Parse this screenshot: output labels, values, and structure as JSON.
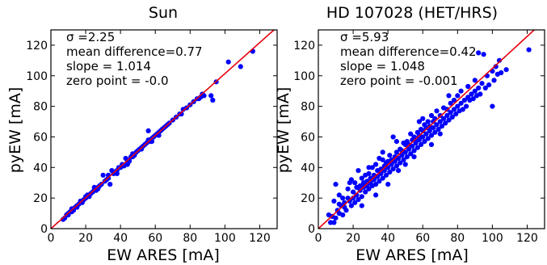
{
  "chart_data": [
    {
      "type": "scatter",
      "title": "Sun",
      "xlabel": "EW ARES [mA]",
      "ylabel": "pyEW [mA]",
      "xlim": [
        0,
        130
      ],
      "ylim": [
        0,
        130
      ],
      "xticks": [
        0,
        20,
        40,
        60,
        80,
        100,
        120
      ],
      "yticks": [
        0,
        20,
        40,
        60,
        80,
        100,
        120
      ],
      "annotations": [
        "σ =2.25",
        "mean difference=0.77",
        "slope = 1.014",
        "zero point = -0.0"
      ],
      "line": {
        "slope": 1.014,
        "intercept": 0.0,
        "color": "#e8000b"
      },
      "point_color": "#0000ff",
      "points": [
        [
          7,
          6
        ],
        [
          8,
          7
        ],
        [
          9,
          9
        ],
        [
          10,
          10
        ],
        [
          11,
          11
        ],
        [
          12,
          11
        ],
        [
          12,
          13
        ],
        [
          13,
          12
        ],
        [
          14,
          14
        ],
        [
          15,
          15
        ],
        [
          16,
          16
        ],
        [
          17,
          18
        ],
        [
          18,
          17
        ],
        [
          19,
          19
        ],
        [
          20,
          21
        ],
        [
          21,
          22
        ],
        [
          22,
          21
        ],
        [
          23,
          23
        ],
        [
          24,
          24
        ],
        [
          25,
          26
        ],
        [
          26,
          25
        ],
        [
          27,
          27
        ],
        [
          28,
          28
        ],
        [
          29,
          29
        ],
        [
          30,
          35
        ],
        [
          31,
          31
        ],
        [
          32,
          32
        ],
        [
          33,
          33
        ],
        [
          34,
          29
        ],
        [
          35,
          38
        ],
        [
          36,
          36
        ],
        [
          37,
          37
        ],
        [
          38,
          38
        ],
        [
          39,
          40
        ],
        [
          40,
          40
        ],
        [
          41,
          42
        ],
        [
          42,
          41
        ],
        [
          43,
          46
        ],
        [
          44,
          44
        ],
        [
          45,
          45
        ],
        [
          46,
          47
        ],
        [
          47,
          47
        ],
        [
          48,
          48
        ],
        [
          49,
          50
        ],
        [
          50,
          51
        ],
        [
          51,
          52
        ],
        [
          52,
          52
        ],
        [
          53,
          54
        ],
        [
          54,
          55
        ],
        [
          55,
          56
        ],
        [
          56,
          58
        ],
        [
          57,
          57
        ],
        [
          58,
          59
        ],
        [
          59,
          60
        ],
        [
          60,
          61
        ],
        [
          61,
          62
        ],
        [
          62,
          63
        ],
        [
          63,
          64
        ],
        [
          64,
          65
        ],
        [
          56,
          64
        ],
        [
          65,
          66
        ],
        [
          66,
          67
        ],
        [
          67,
          68
        ],
        [
          68,
          69
        ],
        [
          70,
          71
        ],
        [
          72,
          73
        ],
        [
          74,
          75
        ],
        [
          75,
          75
        ],
        [
          76,
          78
        ],
        [
          78,
          79
        ],
        [
          80,
          81
        ],
        [
          82,
          83
        ],
        [
          84,
          85
        ],
        [
          85,
          85
        ],
        [
          86,
          86
        ],
        [
          87,
          88
        ],
        [
          88,
          87
        ],
        [
          92,
          87
        ],
        [
          93,
          84
        ],
        [
          95,
          96
        ],
        [
          102,
          109
        ],
        [
          109,
          106
        ],
        [
          116,
          116
        ],
        [
          44,
          42
        ],
        [
          47,
          49
        ],
        [
          33,
          35
        ],
        [
          27,
          26
        ],
        [
          15,
          14
        ],
        [
          10,
          9
        ],
        [
          20,
          20
        ],
        [
          25,
          27
        ],
        [
          38,
          36
        ],
        [
          52,
          53
        ],
        [
          58,
          57
        ],
        [
          62,
          61
        ],
        [
          45,
          44
        ]
      ]
    },
    {
      "type": "scatter",
      "title": "HD 107028 (HET/HRS)",
      "xlabel": "EW ARES [mA]",
      "ylabel": "pyEW [mA]",
      "xlim": [
        0,
        130
      ],
      "ylim": [
        0,
        130
      ],
      "xticks": [
        0,
        20,
        40,
        60,
        80,
        100,
        120
      ],
      "yticks": [
        0,
        20,
        40,
        60,
        80,
        100,
        120
      ],
      "annotations": [
        "σ =5.93",
        "mean difference=0.42",
        "slope = 1.048",
        "zero point = -0.001"
      ],
      "line": {
        "slope": 1.048,
        "intercept": -0.001,
        "color": "#e8000b"
      },
      "point_color": "#0000ff",
      "points": [
        [
          6,
          9
        ],
        [
          7,
          4
        ],
        [
          8,
          8
        ],
        [
          9,
          18
        ],
        [
          10,
          7
        ],
        [
          10,
          29
        ],
        [
          11,
          12
        ],
        [
          12,
          10
        ],
        [
          12,
          16
        ],
        [
          13,
          15
        ],
        [
          14,
          9
        ],
        [
          14,
          20
        ],
        [
          15,
          14
        ],
        [
          15,
          17
        ],
        [
          16,
          12
        ],
        [
          17,
          20
        ],
        [
          17,
          26
        ],
        [
          18,
          18
        ],
        [
          19,
          15
        ],
        [
          19,
          32
        ],
        [
          20,
          20
        ],
        [
          20,
          24
        ],
        [
          21,
          17
        ],
        [
          21,
          30
        ],
        [
          22,
          22
        ],
        [
          22,
          27
        ],
        [
          23,
          19
        ],
        [
          23,
          38
        ],
        [
          24,
          25
        ],
        [
          24,
          28
        ],
        [
          25,
          21
        ],
        [
          25,
          33
        ],
        [
          26,
          27
        ],
        [
          26,
          30
        ],
        [
          27,
          24
        ],
        [
          27,
          35
        ],
        [
          28,
          28
        ],
        [
          28,
          31
        ],
        [
          29,
          26
        ],
        [
          29,
          36
        ],
        [
          30,
          30
        ],
        [
          30,
          33
        ],
        [
          31,
          28
        ],
        [
          31,
          40
        ],
        [
          32,
          32
        ],
        [
          32,
          35
        ],
        [
          33,
          29
        ],
        [
          33,
          42
        ],
        [
          34,
          34
        ],
        [
          34,
          38
        ],
        [
          35,
          31
        ],
        [
          35,
          46
        ],
        [
          36,
          36
        ],
        [
          36,
          39
        ],
        [
          37,
          33
        ],
        [
          37,
          45
        ],
        [
          38,
          38
        ],
        [
          38,
          41
        ],
        [
          39,
          35
        ],
        [
          39,
          43
        ],
        [
          40,
          40
        ],
        [
          40,
          44
        ],
        [
          41,
          37
        ],
        [
          41,
          48
        ],
        [
          42,
          42
        ],
        [
          42,
          45
        ],
        [
          43,
          39
        ],
        [
          43,
          60
        ],
        [
          44,
          44
        ],
        [
          44,
          47
        ],
        [
          45,
          41
        ],
        [
          45,
          50
        ],
        [
          46,
          46
        ],
        [
          46,
          38
        ],
        [
          47,
          43
        ],
        [
          47,
          52
        ],
        [
          48,
          48
        ],
        [
          48,
          51
        ],
        [
          49,
          45
        ],
        [
          49,
          56
        ],
        [
          50,
          50
        ],
        [
          50,
          55
        ],
        [
          51,
          47
        ],
        [
          51,
          57
        ],
        [
          52,
          52
        ],
        [
          52,
          55
        ],
        [
          53,
          49
        ],
        [
          53,
          62
        ],
        [
          54,
          54
        ],
        [
          54,
          58
        ],
        [
          55,
          51
        ],
        [
          55,
          60
        ],
        [
          56,
          56
        ],
        [
          56,
          59
        ],
        [
          57,
          53
        ],
        [
          57,
          63
        ],
        [
          58,
          58
        ],
        [
          58,
          61
        ],
        [
          59,
          55
        ],
        [
          59,
          65
        ],
        [
          60,
          60
        ],
        [
          60,
          64
        ],
        [
          61,
          57
        ],
        [
          61,
          68
        ],
        [
          62,
          62
        ],
        [
          62,
          66
        ],
        [
          63,
          59
        ],
        [
          63,
          70
        ],
        [
          64,
          64
        ],
        [
          64,
          67
        ],
        [
          65,
          61
        ],
        [
          65,
          74
        ],
        [
          66,
          66
        ],
        [
          66,
          70
        ],
        [
          67,
          63
        ],
        [
          67,
          72
        ],
        [
          68,
          68
        ],
        [
          68,
          77
        ],
        [
          69,
          65
        ],
        [
          70,
          70
        ],
        [
          70,
          74
        ],
        [
          71,
          67
        ],
        [
          72,
          72
        ],
        [
          72,
          79
        ],
        [
          73,
          69
        ],
        [
          74,
          74
        ],
        [
          74,
          78
        ],
        [
          75,
          71
        ],
        [
          76,
          76
        ],
        [
          76,
          82
        ],
        [
          77,
          73
        ],
        [
          78,
          78
        ],
        [
          78,
          84
        ],
        [
          79,
          75
        ],
        [
          80,
          80
        ],
        [
          80,
          87
        ],
        [
          81,
          77
        ],
        [
          82,
          82
        ],
        [
          82,
          90
        ],
        [
          83,
          78
        ],
        [
          84,
          84
        ],
        [
          85,
          80
        ],
        [
          86,
          86
        ],
        [
          86,
          93
        ],
        [
          87,
          84
        ],
        [
          88,
          88
        ],
        [
          89,
          85
        ],
        [
          90,
          90
        ],
        [
          90,
          97
        ],
        [
          91,
          87
        ],
        [
          92,
          92
        ],
        [
          92,
          115
        ],
        [
          93,
          88
        ],
        [
          94,
          95
        ],
        [
          95,
          114
        ],
        [
          96,
          92
        ],
        [
          97,
          100
        ],
        [
          98,
          94
        ],
        [
          100,
          103
        ],
        [
          100,
          80
        ],
        [
          101,
          97
        ],
        [
          102,
          106
        ],
        [
          103,
          101
        ],
        [
          104,
          110
        ],
        [
          105,
          102
        ],
        [
          108,
          104
        ],
        [
          121,
          117
        ],
        [
          37,
          50
        ],
        [
          40,
          29
        ],
        [
          29,
          40
        ],
        [
          45,
          57
        ],
        [
          58,
          70
        ],
        [
          50,
          42
        ],
        [
          65,
          55
        ],
        [
          75,
          87
        ],
        [
          55,
          47
        ],
        [
          18,
          30
        ],
        [
          25,
          15
        ],
        [
          33,
          22
        ],
        [
          60,
          72
        ],
        [
          70,
          62
        ],
        [
          12,
          22
        ],
        [
          9,
          4
        ]
      ]
    }
  ]
}
